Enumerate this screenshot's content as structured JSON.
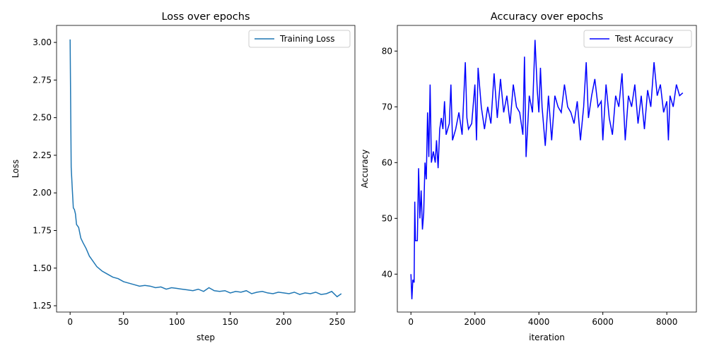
{
  "chart_data": [
    {
      "type": "line",
      "title": "Loss over epochs",
      "x_label": "step",
      "y_label": "Loss",
      "legend": "upper right",
      "xlim": [
        -12.7,
        266.7
      ],
      "ylim": [
        1.208,
        3.113
      ],
      "xticks": [
        0,
        50,
        100,
        150,
        200,
        250
      ],
      "yticks": [
        1.25,
        {
          "value": 1.5,
          "label": "1.50"
        },
        1.75,
        {
          "value": 2,
          "label": "2.00"
        },
        2.25,
        {
          "value": 2.5,
          "label": "2.50"
        },
        2.75,
        {
          "value": 3,
          "label": "3.00"
        }
      ],
      "series": [
        {
          "name": "Training Loss",
          "color": "#1f77b4",
          "x": [
            0,
            1,
            2,
            3,
            4,
            5,
            6,
            8,
            10,
            12,
            15,
            18,
            20,
            25,
            30,
            35,
            40,
            45,
            50,
            55,
            60,
            65,
            70,
            75,
            80,
            85,
            90,
            95,
            100,
            105,
            110,
            115,
            120,
            125,
            130,
            135,
            140,
            145,
            150,
            155,
            160,
            165,
            170,
            175,
            180,
            185,
            190,
            195,
            200,
            205,
            210,
            215,
            220,
            225,
            230,
            235,
            240,
            245,
            250,
            254
          ],
          "values": [
            3.02,
            2.17,
            2.03,
            1.9,
            1.89,
            1.86,
            1.79,
            1.77,
            1.7,
            1.67,
            1.63,
            1.58,
            1.56,
            1.51,
            1.48,
            1.46,
            1.44,
            1.43,
            1.41,
            1.4,
            1.39,
            1.38,
            1.385,
            1.38,
            1.37,
            1.375,
            1.36,
            1.37,
            1.365,
            1.36,
            1.355,
            1.35,
            1.36,
            1.345,
            1.37,
            1.35,
            1.345,
            1.35,
            1.335,
            1.345,
            1.34,
            1.35,
            1.33,
            1.34,
            1.345,
            1.335,
            1.33,
            1.34,
            1.335,
            1.33,
            1.34,
            1.325,
            1.335,
            1.33,
            1.34,
            1.325,
            1.33,
            1.345,
            1.31,
            1.33
          ]
        }
      ]
    },
    {
      "type": "line",
      "title": "Accuracy over epochs",
      "x_label": "iteration",
      "y_label": "Accuracy",
      "legend": "upper right",
      "xlim": [
        -425,
        8925
      ],
      "ylim": [
        33.2,
        84.6
      ],
      "xticks": [
        0,
        2000,
        4000,
        6000,
        8000
      ],
      "yticks": [
        40,
        50,
        60,
        70,
        80
      ],
      "series": [
        {
          "name": "Test Accuracy",
          "color": "#0000ff",
          "x": [
            0,
            30,
            60,
            100,
            120,
            140,
            200,
            240,
            280,
            320,
            360,
            400,
            440,
            480,
            520,
            560,
            600,
            640,
            700,
            760,
            800,
            850,
            900,
            950,
            1000,
            1050,
            1100,
            1200,
            1250,
            1300,
            1400,
            1500,
            1600,
            1700,
            1750,
            1800,
            1900,
            2000,
            2050,
            2100,
            2200,
            2300,
            2400,
            2500,
            2600,
            2700,
            2800,
            2900,
            3000,
            3100,
            3200,
            3300,
            3400,
            3500,
            3550,
            3600,
            3700,
            3800,
            3880,
            3950,
            4000,
            4050,
            4100,
            4200,
            4300,
            4400,
            4500,
            4600,
            4700,
            4800,
            4900,
            5000,
            5100,
            5200,
            5300,
            5400,
            5480,
            5550,
            5650,
            5750,
            5850,
            5950,
            6000,
            6100,
            6200,
            6300,
            6400,
            6500,
            6600,
            6700,
            6800,
            6900,
            7000,
            7100,
            7200,
            7300,
            7400,
            7500,
            7600,
            7700,
            7800,
            7900,
            8000,
            8050,
            8100,
            8200,
            8300,
            8400,
            8500
          ],
          "values": [
            40,
            35.5,
            39,
            38.5,
            53,
            46,
            46,
            59,
            50,
            55,
            48,
            51,
            60,
            57,
            69,
            61,
            74,
            60,
            62,
            60,
            64,
            59,
            66,
            68,
            66,
            71,
            65,
            67,
            74,
            64,
            66,
            69,
            65,
            78,
            68,
            66,
            67,
            74,
            64,
            77,
            70,
            66,
            70,
            67,
            76,
            68,
            75,
            69,
            72,
            67,
            74,
            70,
            69,
            65,
            79,
            61,
            72,
            69,
            82,
            73,
            69,
            77,
            70,
            63,
            72,
            64,
            72,
            70,
            69,
            74,
            70,
            69,
            67,
            71,
            64,
            70,
            78,
            68,
            72,
            75,
            70,
            71,
            64,
            74,
            68,
            65,
            72,
            70,
            76,
            64,
            72,
            70,
            74,
            67,
            72,
            66,
            73,
            70,
            78,
            72,
            74,
            69,
            71,
            64,
            72,
            70,
            74,
            72,
            72.5
          ]
        }
      ]
    }
  ]
}
